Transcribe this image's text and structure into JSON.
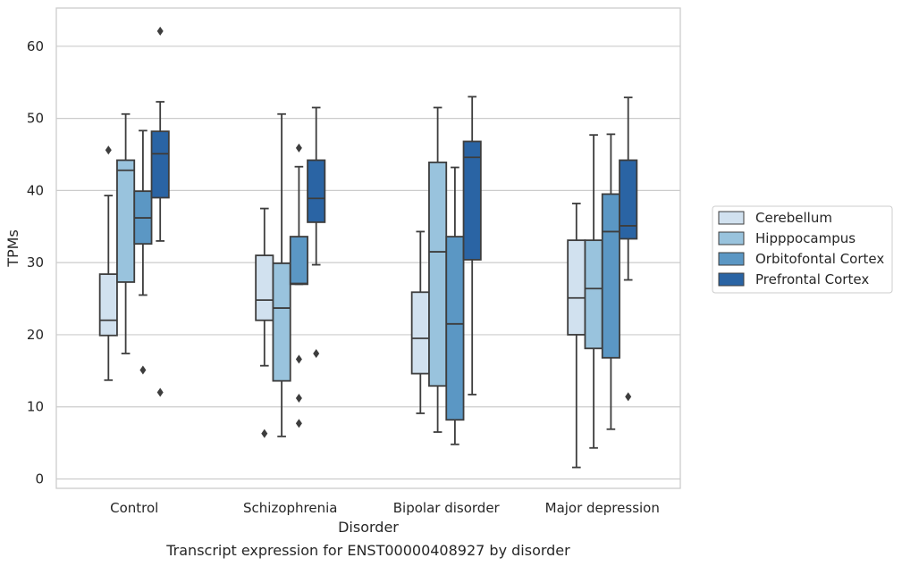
{
  "chart_data": {
    "type": "boxplot",
    "caption": "Transcript expression for ENST00000408927 by disorder",
    "xlabel": "Disorder",
    "ylabel": "TPMs",
    "ylim": [
      -1.3,
      65.3
    ],
    "yticks": [
      0,
      10,
      20,
      30,
      40,
      50,
      60
    ],
    "grid": "horizontal",
    "legend_position": "right",
    "categories": [
      "Control",
      "Schizophrenia",
      "Bipolar disorder",
      "Major depression"
    ],
    "series": [
      {
        "name": "Cerebellum",
        "color": "#d1e1ef",
        "boxes": [
          {
            "whislo": 13.7,
            "q1": 19.9,
            "med": 22.0,
            "q3": 28.4,
            "whishi": 39.3,
            "fliers": [
              45.6
            ]
          },
          {
            "whislo": 15.7,
            "q1": 22.0,
            "med": 24.8,
            "q3": 31.0,
            "whishi": 37.5,
            "fliers": [
              6.3
            ]
          },
          {
            "whislo": 9.1,
            "q1": 14.6,
            "med": 19.5,
            "q3": 25.9,
            "whishi": 34.3,
            "fliers": []
          },
          {
            "whislo": 1.6,
            "q1": 20.0,
            "med": 25.1,
            "q3": 33.1,
            "whishi": 38.2,
            "fliers": []
          }
        ]
      },
      {
        "name": "Hipppocampus",
        "color": "#99c3dd",
        "boxes": [
          {
            "whislo": 17.4,
            "q1": 27.3,
            "med": 42.8,
            "q3": 44.2,
            "whishi": 50.6,
            "fliers": []
          },
          {
            "whislo": 5.9,
            "q1": 13.6,
            "med": 23.7,
            "q3": 29.9,
            "whishi": 50.6,
            "fliers": []
          },
          {
            "whislo": 6.5,
            "q1": 12.9,
            "med": 31.5,
            "q3": 43.9,
            "whishi": 51.5,
            "fliers": []
          },
          {
            "whislo": 4.3,
            "q1": 18.1,
            "med": 26.4,
            "q3": 33.1,
            "whishi": 47.7,
            "fliers": []
          }
        ]
      },
      {
        "name": "Orbitofontal Cortex",
        "color": "#5b97c4",
        "boxes": [
          {
            "whislo": 25.5,
            "q1": 32.6,
            "med": 36.2,
            "q3": 39.9,
            "whishi": 48.3,
            "fliers": [
              15.1
            ]
          },
          {
            "whislo": 27.0,
            "q1": 27.0,
            "med": 27.1,
            "q3": 33.6,
            "whishi": 43.3,
            "fliers": [
              45.9,
              16.6,
              11.2,
              7.7
            ]
          },
          {
            "whislo": 4.8,
            "q1": 8.2,
            "med": 21.5,
            "q3": 33.6,
            "whishi": 43.2,
            "fliers": []
          },
          {
            "whislo": 6.9,
            "q1": 16.8,
            "med": 34.3,
            "q3": 39.5,
            "whishi": 47.8,
            "fliers": []
          }
        ]
      },
      {
        "name": "Prefrontal Cortex",
        "color": "#2a64a4",
        "boxes": [
          {
            "whislo": 33.0,
            "q1": 39.0,
            "med": 45.1,
            "q3": 48.2,
            "whishi": 52.3,
            "fliers": [
              62.1,
              12.0
            ]
          },
          {
            "whislo": 29.7,
            "q1": 35.6,
            "med": 38.9,
            "q3": 44.2,
            "whishi": 51.5,
            "fliers": [
              17.4
            ]
          },
          {
            "whislo": 11.7,
            "q1": 30.4,
            "med": 44.6,
            "q3": 46.8,
            "whishi": 53.0,
            "fliers": []
          },
          {
            "whislo": 27.6,
            "q1": 33.3,
            "med": 35.1,
            "q3": 44.2,
            "whishi": 52.9,
            "fliers": [
              11.4
            ]
          }
        ]
      }
    ]
  }
}
